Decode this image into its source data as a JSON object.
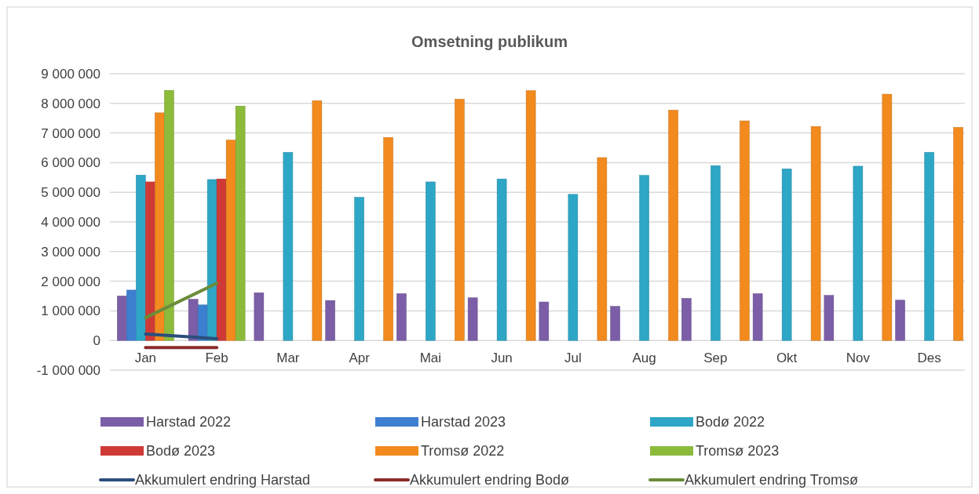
{
  "chart_data": {
    "type": "bar",
    "title": "Omsetning publikum",
    "categories": [
      "Jan",
      "Feb",
      "Mar",
      "Apr",
      "Mai",
      "Jun",
      "Jul",
      "Aug",
      "Sep",
      "Okt",
      "Nov",
      "Des"
    ],
    "series": [
      {
        "name": "Harstad 2022",
        "color": "#7b5ea7",
        "values": [
          1500000,
          1390000,
          1610000,
          1350000,
          1580000,
          1440000,
          1300000,
          1150000,
          1420000,
          1580000,
          1520000,
          1360000
        ]
      },
      {
        "name": "Harstad 2023",
        "color": "#3d7fd0",
        "values": [
          1700000,
          1200000,
          null,
          null,
          null,
          null,
          null,
          null,
          null,
          null,
          null,
          null
        ]
      },
      {
        "name": "Bodø 2022",
        "color": "#2ea6c6",
        "values": [
          5580000,
          5430000,
          6350000,
          4830000,
          5350000,
          5450000,
          4930000,
          5570000,
          5900000,
          5790000,
          5880000,
          6350000
        ]
      },
      {
        "name": "Bodø 2023",
        "color": "#d03a36",
        "values": [
          5350000,
          5450000,
          null,
          null,
          null,
          null,
          null,
          null,
          null,
          null,
          null,
          null
        ]
      },
      {
        "name": "Tromsø 2022",
        "color": "#f28a1e",
        "values": [
          7680000,
          6760000,
          8090000,
          6850000,
          8140000,
          8430000,
          6170000,
          7770000,
          7410000,
          7220000,
          8310000,
          7190000
        ]
      },
      {
        "name": "Tromsø 2023",
        "color": "#8cbb3c",
        "values": [
          8440000,
          7910000,
          null,
          null,
          null,
          null,
          null,
          null,
          null,
          null,
          null,
          null
        ]
      },
      {
        "name": "Akkumulert endring Harstad",
        "type": "line",
        "color": "#2b4f7c",
        "values": [
          220000,
          60000,
          null,
          null,
          null,
          null,
          null,
          null,
          null,
          null,
          null,
          null
        ]
      },
      {
        "name": "Akkumulert endring Bodø",
        "type": "line",
        "color": "#8b2b2b",
        "values": [
          -240000,
          -240000,
          null,
          null,
          null,
          null,
          null,
          null,
          null,
          null,
          null,
          null
        ]
      },
      {
        "name": "Akkumulert endring Tromsø",
        "type": "line",
        "color": "#6b8c3a",
        "values": [
          770000,
          1930000,
          null,
          null,
          null,
          null,
          null,
          null,
          null,
          null,
          null,
          null
        ]
      }
    ],
    "ylim": [
      -1000000,
      9000000
    ],
    "yticks": [
      {
        "value": -1000000,
        "label": "-1 000 000"
      },
      {
        "value": 0,
        "label": "0"
      },
      {
        "value": 1000000,
        "label": "1 000 000"
      },
      {
        "value": 2000000,
        "label": "2 000 000"
      },
      {
        "value": 3000000,
        "label": "3 000 000"
      },
      {
        "value": 4000000,
        "label": "4 000 000"
      },
      {
        "value": 5000000,
        "label": "5 000 000"
      },
      {
        "value": 6000000,
        "label": "6 000 000"
      },
      {
        "value": 7000000,
        "label": "7 000 000"
      },
      {
        "value": 8000000,
        "label": "8 000 000"
      },
      {
        "value": 9000000,
        "label": "9 000 000"
      }
    ],
    "grid": "y",
    "legend": "bottom",
    "marker": "none",
    "line_style": "solid"
  }
}
